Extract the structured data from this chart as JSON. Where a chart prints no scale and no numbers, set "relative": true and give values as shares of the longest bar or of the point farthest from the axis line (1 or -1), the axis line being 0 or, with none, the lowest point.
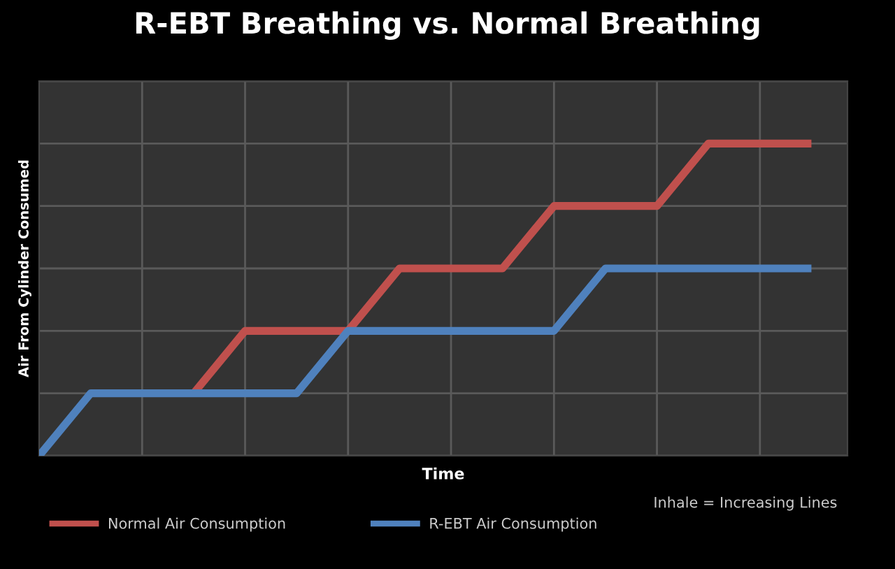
{
  "chart_data": {
    "type": "line",
    "title": "R-EBT Breathing vs. Normal Breathing",
    "xlabel": "Time",
    "ylabel": "Air From Cylinder Consumed",
    "relative": true,
    "categories": [
      null,
      null,
      null,
      null,
      null,
      null,
      null,
      null,
      null,
      null,
      null,
      null,
      null,
      null,
      null,
      null
    ],
    "grid": true,
    "legend": "bottom",
    "marker": "none",
    "line_style": "solid",
    "tick_labels": false,
    "annotations": [
      "Inhale = Increasing Lines"
    ],
    "series": [
      {
        "name": "Normal Air Consumption",
        "color": "#c0504d",
        "values": [
          null,
          null,
          null,
          0.2,
          0.4,
          0.4,
          0.4,
          0.6,
          0.6,
          0.6,
          0.8,
          0.8,
          0.8,
          1,
          1,
          1
        ]
      },
      {
        "name": "R-EBT Air Consumption",
        "color": "#4f81bd",
        "values": [
          0,
          0.2,
          0.2,
          0.2,
          0.2,
          0.2,
          0.4,
          0.4,
          0.4,
          0.4,
          0.4,
          0.6,
          0.6,
          0.6,
          0.6,
          0.6
        ]
      }
    ]
  }
}
